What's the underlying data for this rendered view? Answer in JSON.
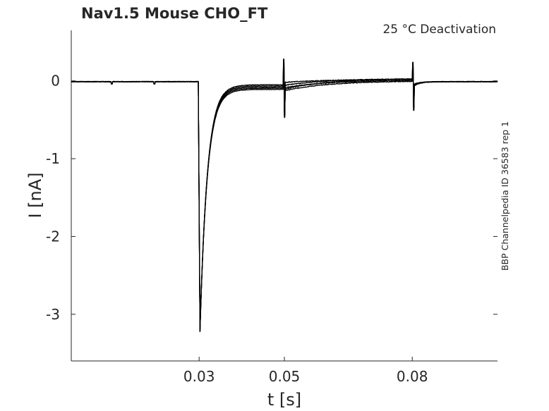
{
  "chart_data": {
    "type": "line",
    "title": "Nav1.5  Mouse  CHO_FT",
    "annotation": "25 °C  Deactivation",
    "side_label": "BBP Channelpedia ID 36583 rep 1",
    "xlabel": "t [s]",
    "ylabel": "I [nA]",
    "xlim": [
      0.0,
      0.1
    ],
    "ylim": [
      -3.6,
      0.65
    ],
    "x_ticks": [
      0.03,
      0.05,
      0.08
    ],
    "x_tick_labels": [
      "0.03",
      "0.05",
      "0.08"
    ],
    "y_ticks": [
      0,
      -1,
      -2,
      -3
    ],
    "y_tick_labels": [
      "0",
      "-1",
      "-2",
      "-3"
    ],
    "grid": false,
    "line_color": "#000000",
    "series_shape": {
      "baseline": -0.01,
      "pre_pulse_blips": [
        0.0095,
        0.0195
      ],
      "pulse_onset": 0.0298,
      "peak_time": 0.0302,
      "peak_current": -3.22,
      "inactivation_tau": 0.0017,
      "transition_time": 0.0498,
      "transition_spike_up": 0.28,
      "transition_spike_down": -0.47,
      "end_time": 0.0801,
      "end_spike_up": 0.24,
      "end_spike_down": -0.38,
      "tail_levels_start": [
        -0.02,
        -0.06,
        -0.09,
        -0.11,
        -0.13
      ],
      "tail_levels_end": [
        0.02,
        0.03,
        0.01,
        0.03,
        0.0
      ]
    }
  }
}
